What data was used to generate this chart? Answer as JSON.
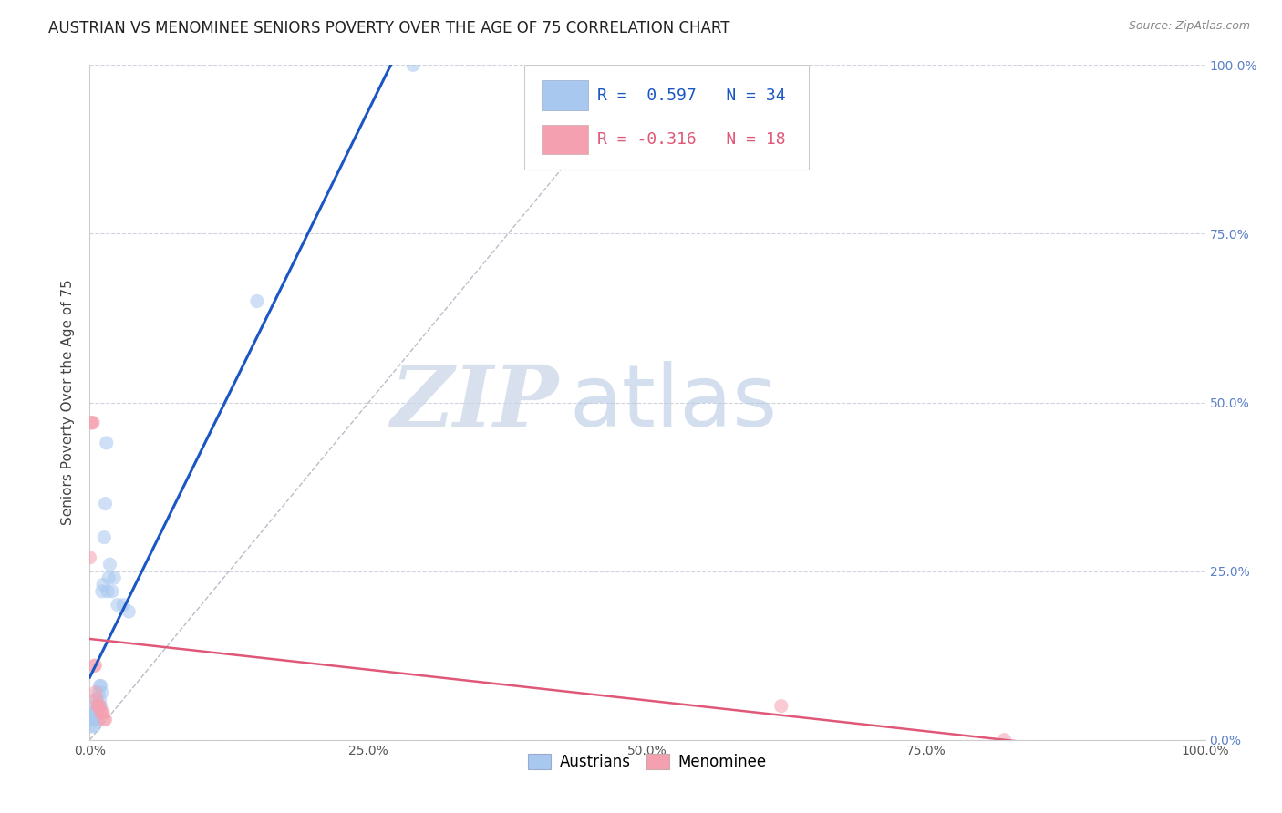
{
  "title": "AUSTRIAN VS MENOMINEE SENIORS POVERTY OVER THE AGE OF 75 CORRELATION CHART",
  "source": "Source: ZipAtlas.com",
  "ylabel": "Seniors Poverty Over the Age of 75",
  "xlim": [
    0,
    1.0
  ],
  "ylim": [
    0,
    1.0
  ],
  "xticks": [
    0.0,
    0.25,
    0.5,
    0.75,
    1.0
  ],
  "yticks": [
    0.0,
    0.25,
    0.5,
    0.75,
    1.0
  ],
  "xtick_labels": [
    "0.0%",
    "25.0%",
    "50.0%",
    "75.0%",
    "100.0%"
  ],
  "ytick_labels": [
    "0.0%",
    "25.0%",
    "50.0%",
    "75.0%",
    "100.0%"
  ],
  "austrian_color": "#a8c8f0",
  "menominee_color": "#f5a0b0",
  "austrian_line_color": "#1a56c4",
  "menominee_line_color": "#e05878",
  "diag_line_color": "#b8bcc8",
  "R_austrian": 0.597,
  "N_austrian": 34,
  "R_menominee": -0.316,
  "N_menominee": 18,
  "austrian_x": [
    0.001,
    0.002,
    0.003,
    0.003,
    0.004,
    0.004,
    0.005,
    0.005,
    0.006,
    0.006,
    0.007,
    0.007,
    0.008,
    0.008,
    0.009,
    0.009,
    0.01,
    0.01,
    0.011,
    0.011,
    0.012,
    0.013,
    0.014,
    0.015,
    0.016,
    0.017,
    0.018,
    0.02,
    0.022,
    0.025,
    0.03,
    0.035,
    0.15,
    0.29
  ],
  "austrian_y": [
    0.02,
    0.03,
    0.03,
    0.04,
    0.04,
    0.02,
    0.05,
    0.03,
    0.06,
    0.04,
    0.05,
    0.03,
    0.07,
    0.05,
    0.08,
    0.06,
    0.08,
    0.05,
    0.22,
    0.07,
    0.23,
    0.3,
    0.35,
    0.44,
    0.22,
    0.24,
    0.26,
    0.22,
    0.24,
    0.2,
    0.2,
    0.19,
    0.65,
    1.0
  ],
  "menominee_x": [
    0.0,
    0.001,
    0.002,
    0.003,
    0.004,
    0.005,
    0.005,
    0.006,
    0.007,
    0.008,
    0.009,
    0.01,
    0.011,
    0.012,
    0.013,
    0.014,
    0.62,
    0.82
  ],
  "menominee_y": [
    0.27,
    0.47,
    0.47,
    0.47,
    0.11,
    0.11,
    0.07,
    0.06,
    0.05,
    0.05,
    0.05,
    0.04,
    0.04,
    0.04,
    0.03,
    0.03,
    0.05,
    0.0
  ],
  "background_color": "#ffffff",
  "grid_color": "#d0d4e0",
  "watermark_zip": "ZIP",
  "watermark_atlas": "atlas",
  "watermark_color_zip": "#c8d4e8",
  "watermark_color_atlas": "#b0c4e0",
  "title_fontsize": 12,
  "label_fontsize": 11,
  "tick_fontsize": 10,
  "legend_fontsize": 13,
  "marker_size": 120,
  "marker_alpha": 0.55
}
